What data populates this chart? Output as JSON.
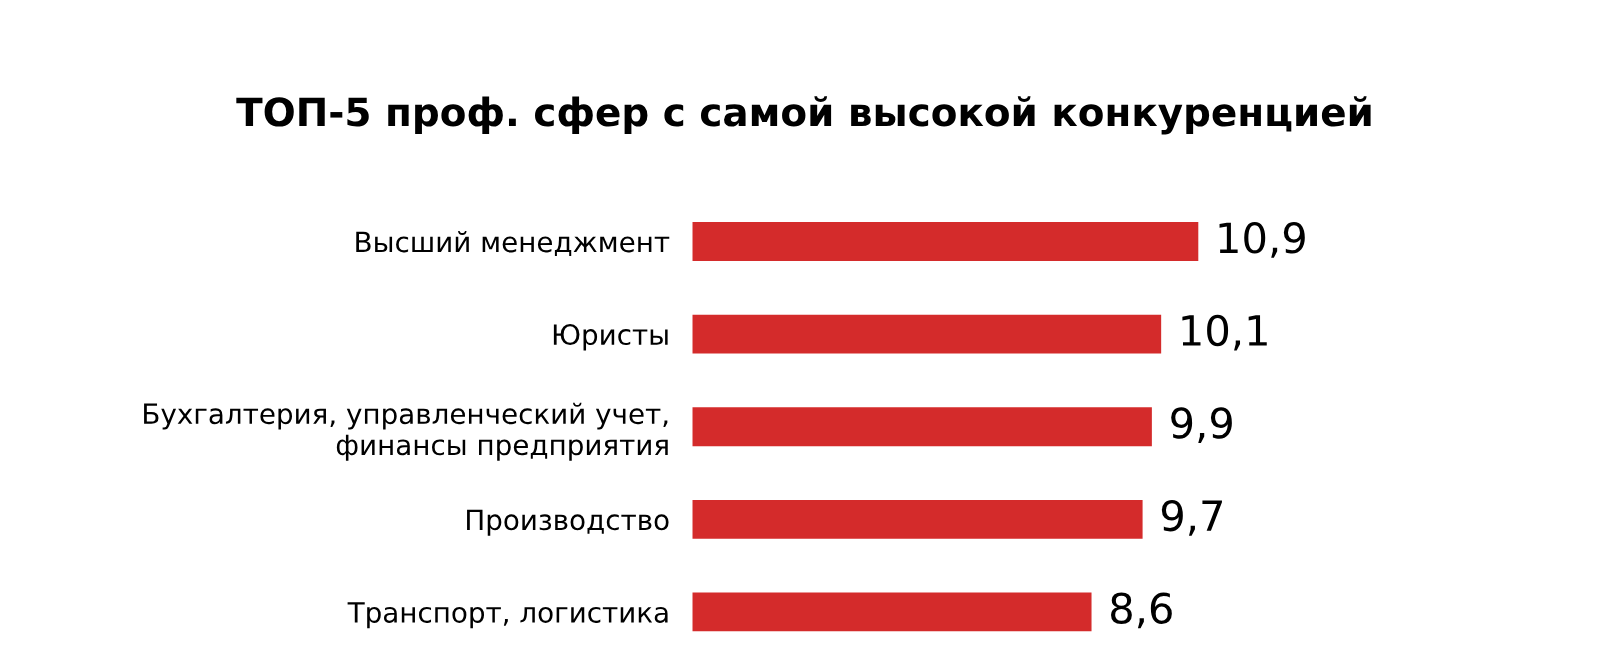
{
  "chart_data": {
    "type": "bar",
    "orientation": "horizontal",
    "title": "ТОП-5 проф. сфер с самой высокой конкуренцией",
    "categories": [
      "Высший менеджмент",
      "Юристы",
      "Бухгалтерия, управленческий учет,\nфинансы предприятия",
      "Производство",
      "Транспорт, логистика"
    ],
    "values": [
      10.9,
      10.1,
      9.9,
      9.7,
      8.6
    ],
    "value_labels": [
      "10,9",
      "10,1",
      "9,9",
      "9,7",
      "8,6"
    ],
    "color": "#d42b2b",
    "tick_labels": "y",
    "grid": false,
    "legend": false
  }
}
